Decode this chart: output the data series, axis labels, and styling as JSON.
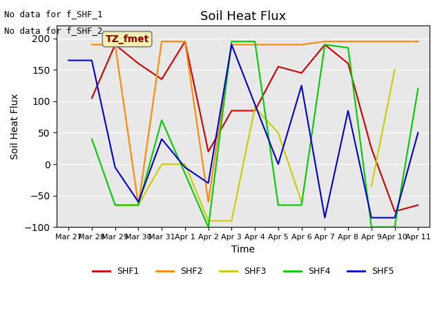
{
  "title": "Soil Heat Flux",
  "xlabel": "Time",
  "ylabel": "Soil Heat Flux",
  "ylim": [
    -100,
    220
  ],
  "yticks": [
    -100,
    -50,
    0,
    50,
    100,
    150,
    200
  ],
  "text_top_left": [
    "No data for f_SHF_1",
    "No data for f_SHF_2"
  ],
  "annotation_box": "TZ_fmet",
  "legend_labels": [
    "SHF1",
    "SHF2",
    "SHF3",
    "SHF4",
    "SHF5"
  ],
  "colors": {
    "SHF1": "#cc0000",
    "SHF2": "#ff8800",
    "SHF3": "#cccc00",
    "SHF4": "#00cc00",
    "SHF5": "#0000cc"
  },
  "xtick_labels": [
    "Mar 27",
    "Mar 28",
    "Mar 29",
    "Mar 30",
    "Mar 31",
    "Apr 1",
    "Apr 2",
    "Apr 3",
    "Apr 4",
    "Apr 5",
    "Apr 6",
    "Apr 7",
    "Apr 8",
    "Apr 9",
    "Apr 10",
    "Apr 11"
  ],
  "SHF1": [
    null,
    105,
    190,
    160,
    135,
    195,
    20,
    85,
    85,
    155,
    145,
    190,
    160,
    25,
    -75,
    -65
  ],
  "SHF2": [
    null,
    190,
    190,
    -65,
    195,
    195,
    -60,
    190,
    190,
    190,
    190,
    195,
    195,
    195,
    195,
    195
  ],
  "SHF3": [
    null,
    null,
    -65,
    -65,
    0,
    0,
    -90,
    -90,
    90,
    50,
    -60,
    null,
    null,
    -35,
    150,
    null
  ],
  "SHF4": [
    null,
    40,
    -65,
    -65,
    70,
    -15,
    -100,
    195,
    195,
    -65,
    -65,
    190,
    185,
    -100,
    -100,
    120
  ],
  "SHF5": [
    165,
    165,
    -5,
    -60,
    40,
    -5,
    -30,
    190,
    95,
    0,
    125,
    -85,
    85,
    -85,
    -85,
    50
  ],
  "background_color": "#e8e8e8"
}
